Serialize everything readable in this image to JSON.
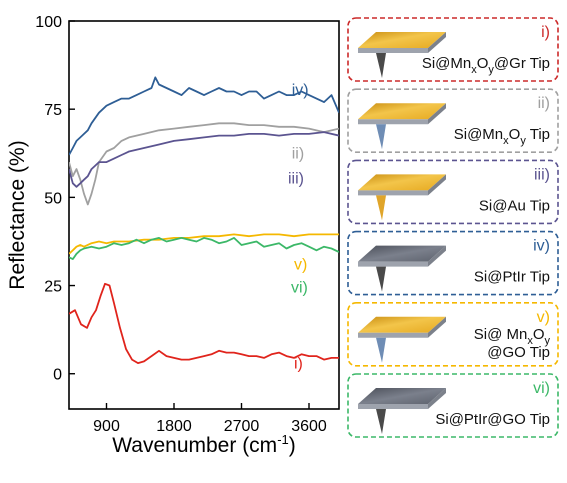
{
  "chart_data": {
    "type": "line",
    "xlabel": "Wavenumber (cm",
    "xlabel_sup": "-1",
    "xlabel_end": ")",
    "ylabel": "Reflectance (%)",
    "xlim": [
      400,
      4000
    ],
    "ylim": [
      -10,
      100
    ],
    "xticks": [
      900,
      1800,
      2700,
      3600
    ],
    "yticks": [
      0,
      25,
      50,
      75,
      100
    ],
    "grid": false,
    "series": [
      {
        "name": "i)",
        "color": "#e0241c",
        "x": [
          400,
          480,
          560,
          640,
          700,
          760,
          820,
          880,
          940,
          1000,
          1080,
          1160,
          1240,
          1320,
          1400,
          1500,
          1600,
          1700,
          1800,
          1900,
          2000,
          2100,
          2200,
          2300,
          2400,
          2500,
          2600,
          2700,
          2800,
          2900,
          3000,
          3100,
          3200,
          3300,
          3400,
          3500,
          3600,
          3700,
          3800,
          3900,
          4000
        ],
        "y": [
          17,
          18,
          14,
          13,
          16,
          18,
          22,
          25.5,
          25,
          20,
          13,
          7,
          4,
          3,
          3.5,
          5,
          6.5,
          5,
          4.5,
          4,
          4,
          4.5,
          5,
          5.5,
          6.5,
          6,
          6,
          5.5,
          5,
          5,
          4.5,
          5.5,
          6,
          5,
          4.5,
          5.5,
          5,
          5,
          4,
          4.5,
          4.5
        ]
      },
      {
        "name": "ii)",
        "color": "#a0a0a0",
        "x": [
          400,
          450,
          500,
          550,
          600,
          650,
          700,
          750,
          800,
          900,
          1000,
          1100,
          1200,
          1400,
          1600,
          1800,
          2000,
          2200,
          2400,
          2600,
          2800,
          3000,
          3200,
          3400,
          3600,
          3800,
          4000
        ],
        "y": [
          60,
          56,
          58,
          55,
          51,
          48,
          51,
          55,
          60,
          63,
          64,
          66,
          67,
          68,
          69,
          69.5,
          70,
          70.5,
          71,
          71,
          70.5,
          70.5,
          70,
          70,
          69.5,
          68.5,
          69.5
        ]
      },
      {
        "name": "iii)",
        "color": "#5b5490",
        "x": [
          400,
          450,
          500,
          550,
          600,
          650,
          700,
          800,
          900,
          1000,
          1100,
          1200,
          1400,
          1600,
          1800,
          2000,
          2200,
          2400,
          2600,
          2800,
          3000,
          3200,
          3400,
          3600,
          3800,
          4000
        ],
        "y": [
          58,
          54,
          53,
          54,
          55,
          56,
          58,
          60,
          60,
          61,
          62,
          63,
          64,
          65,
          66,
          66.5,
          67,
          67.5,
          67.5,
          68,
          68,
          67.5,
          68,
          68,
          68.5,
          67.5
        ]
      },
      {
        "name": "iv)",
        "color": "#2e5e95",
        "x": [
          400,
          450,
          500,
          550,
          600,
          650,
          700,
          800,
          900,
          1000,
          1100,
          1200,
          1300,
          1400,
          1500,
          1550,
          1600,
          1700,
          1800,
          1900,
          2000,
          2100,
          2200,
          2300,
          2400,
          2500,
          2600,
          2700,
          2800,
          2900,
          3000,
          3100,
          3200,
          3300,
          3400,
          3500,
          3600,
          3700,
          3800,
          3900,
          4000
        ],
        "y": [
          62,
          64,
          66,
          67,
          68,
          69,
          71,
          74,
          76,
          77,
          78,
          78,
          79,
          80,
          81,
          84,
          82,
          81,
          80,
          79,
          81,
          80,
          79,
          80,
          81,
          80,
          80,
          79,
          80,
          80,
          78,
          79,
          80,
          79,
          79,
          80,
          79,
          78,
          77,
          79,
          74
        ]
      },
      {
        "name": "v)",
        "color": "#f5b800",
        "x": [
          400,
          450,
          500,
          550,
          600,
          700,
          800,
          900,
          1000,
          1100,
          1200,
          1400,
          1600,
          1800,
          2000,
          2200,
          2400,
          2600,
          2800,
          3000,
          3200,
          3400,
          3600,
          3800,
          4000
        ],
        "y": [
          34,
          35,
          36,
          36.5,
          36,
          37,
          37.5,
          37,
          37.5,
          37.5,
          37.5,
          38,
          38,
          38.5,
          38.5,
          39,
          39,
          39.5,
          39,
          39.5,
          39.5,
          39,
          39.5,
          39.5,
          39.5
        ]
      },
      {
        "name": "vi)",
        "color": "#3cb868",
        "x": [
          400,
          450,
          500,
          550,
          600,
          700,
          800,
          900,
          1000,
          1100,
          1200,
          1300,
          1400,
          1500,
          1600,
          1700,
          1800,
          1900,
          2000,
          2100,
          2200,
          2300,
          2400,
          2500,
          2600,
          2700,
          2800,
          2900,
          3000,
          3100,
          3200,
          3300,
          3400,
          3500,
          3600,
          3700,
          3800,
          3900,
          4000
        ],
        "y": [
          33,
          32.5,
          34,
          35,
          35.5,
          36,
          35.5,
          36,
          37,
          36.5,
          37,
          38,
          37,
          38,
          38.5,
          37.5,
          38,
          38.5,
          38,
          37.5,
          38.5,
          38,
          37,
          37.5,
          38.5,
          36.5,
          37,
          37.5,
          36,
          36.5,
          37,
          35.5,
          36.5,
          37,
          36,
          35,
          36,
          35.5,
          34.5
        ]
      }
    ],
    "series_labels": [
      {
        "text": "iv)",
        "color": "#2e5e95",
        "x": 3370,
        "y": 79
      },
      {
        "text": "ii)",
        "color": "#a0a0a0",
        "x": 3370,
        "y": 61
      },
      {
        "text": "iii)",
        "color": "#5b5490",
        "x": 3320,
        "y": 54
      },
      {
        "text": "v)",
        "color": "#f5b800",
        "x": 3400,
        "y": 29.5
      },
      {
        "text": "vi)",
        "color": "#3cb868",
        "x": 3360,
        "y": 23
      },
      {
        "text": "i)",
        "color": "#e0241c",
        "x": 3400,
        "y": 1.5
      }
    ]
  },
  "legend_panels": [
    {
      "numeral": "i)",
      "color": "#cc2a2a",
      "plate": "gold",
      "needle": "#4a4a4a",
      "label": [
        {
          "t": "Si@Mn"
        },
        {
          "t": "x",
          "sub": true
        },
        {
          "t": "O"
        },
        {
          "t": "y",
          "sub": true
        },
        {
          "t": "@Gr Tip"
        }
      ]
    },
    {
      "numeral": "ii)",
      "color": "#a0a0a0",
      "plate": "gold",
      "needle": "#6f8db5",
      "label": [
        {
          "t": "Si@Mn"
        },
        {
          "t": "x",
          "sub": true
        },
        {
          "t": "O"
        },
        {
          "t": "y",
          "sub": true
        },
        {
          "t": " Tip"
        }
      ]
    },
    {
      "numeral": "iii)",
      "color": "#5b5490",
      "plate": "gold",
      "needle": "#e0a52a",
      "label": [
        {
          "t": "Si@Au Tip"
        }
      ]
    },
    {
      "numeral": "iv)",
      "color": "#2e5e95",
      "plate": "dark",
      "needle": "#4a4a4a",
      "label": [
        {
          "t": "Si@PtIr Tip"
        }
      ]
    },
    {
      "numeral": "v)",
      "color": "#f5b800",
      "plate": "gold",
      "needle": "#6f8db5",
      "label": [
        {
          "t": "Si@ Mn"
        },
        {
          "t": "x",
          "sub": true
        },
        {
          "t": "O"
        },
        {
          "t": "y",
          "sub": true
        }
      ],
      "label2": [
        {
          "t": "@GO Tip"
        }
      ]
    },
    {
      "numeral": "vi)",
      "color": "#3cb868",
      "plate": "dark",
      "needle": "#4a4a4a",
      "label": [
        {
          "t": "Si@PtIr@GO Tip"
        }
      ]
    }
  ]
}
